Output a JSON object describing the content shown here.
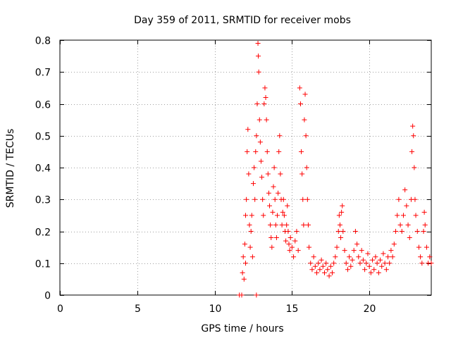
{
  "chart_data": {
    "type": "scatter",
    "title": "Day 359 of 2011, SRMTID for receiver mobs",
    "xlabel": "GPS time / hours",
    "ylabel": "SRMTID / TECUs",
    "xlim": [
      0,
      24
    ],
    "ylim": [
      0,
      0.8
    ],
    "xticks": [
      0,
      5,
      10,
      15,
      20
    ],
    "xtick_labels": [
      "0",
      "5",
      "10",
      "15",
      "20"
    ],
    "yticks": [
      0,
      0.1,
      0.2,
      0.3,
      0.4,
      0.5,
      0.6,
      0.7,
      0.8
    ],
    "ytick_labels": [
      "0",
      "0.1",
      "0.2",
      "0.3",
      "0.4",
      "0.5",
      "0.6",
      "0.7",
      "0.8"
    ],
    "grid": true,
    "marker": "+",
    "color": "#ff0000",
    "series": [
      {
        "name": "SRMTID",
        "points": [
          [
            11.6,
            0.0
          ],
          [
            11.75,
            0.0
          ],
          [
            11.8,
            0.07
          ],
          [
            11.85,
            0.12
          ],
          [
            11.9,
            0.05
          ],
          [
            11.95,
            0.16
          ],
          [
            12.0,
            0.25
          ],
          [
            12.0,
            0.1
          ],
          [
            12.05,
            0.3
          ],
          [
            12.1,
            0.45
          ],
          [
            12.15,
            0.52
          ],
          [
            12.2,
            0.38
          ],
          [
            12.25,
            0.22
          ],
          [
            12.3,
            0.15
          ],
          [
            12.35,
            0.2
          ],
          [
            12.4,
            0.25
          ],
          [
            12.45,
            0.12
          ],
          [
            12.5,
            0.35
          ],
          [
            12.55,
            0.4
          ],
          [
            12.6,
            0.3
          ],
          [
            12.65,
            0.45
          ],
          [
            12.7,
            0.5
          ],
          [
            12.7,
            0.0
          ],
          [
            12.75,
            0.6
          ],
          [
            12.8,
            0.79
          ],
          [
            12.82,
            0.75
          ],
          [
            12.85,
            0.7
          ],
          [
            12.9,
            0.55
          ],
          [
            12.95,
            0.48
          ],
          [
            13.0,
            0.42
          ],
          [
            13.05,
            0.37
          ],
          [
            13.1,
            0.3
          ],
          [
            13.15,
            0.25
          ],
          [
            13.2,
            0.6
          ],
          [
            13.25,
            0.65
          ],
          [
            13.3,
            0.62
          ],
          [
            13.35,
            0.55
          ],
          [
            13.4,
            0.45
          ],
          [
            13.45,
            0.38
          ],
          [
            13.5,
            0.32
          ],
          [
            13.55,
            0.28
          ],
          [
            13.6,
            0.22
          ],
          [
            13.65,
            0.18
          ],
          [
            13.7,
            0.15
          ],
          [
            13.75,
            0.26
          ],
          [
            13.8,
            0.34
          ],
          [
            13.85,
            0.4
          ],
          [
            13.9,
            0.3
          ],
          [
            13.95,
            0.22
          ],
          [
            14.0,
            0.18
          ],
          [
            14.05,
            0.25
          ],
          [
            14.1,
            0.32
          ],
          [
            14.15,
            0.45
          ],
          [
            14.2,
            0.5
          ],
          [
            14.25,
            0.38
          ],
          [
            14.3,
            0.3
          ],
          [
            14.35,
            0.22
          ],
          [
            14.4,
            0.26
          ],
          [
            14.45,
            0.3
          ],
          [
            14.5,
            0.25
          ],
          [
            14.55,
            0.2
          ],
          [
            14.6,
            0.17
          ],
          [
            14.65,
            0.22
          ],
          [
            14.7,
            0.28
          ],
          [
            14.75,
            0.2
          ],
          [
            14.8,
            0.16
          ],
          [
            14.85,
            0.14
          ],
          [
            14.9,
            0.18
          ],
          [
            15.0,
            0.15
          ],
          [
            15.1,
            0.12
          ],
          [
            15.2,
            0.17
          ],
          [
            15.3,
            0.2
          ],
          [
            15.4,
            0.14
          ],
          [
            15.5,
            0.65
          ],
          [
            15.55,
            0.6
          ],
          [
            15.6,
            0.45
          ],
          [
            15.65,
            0.38
          ],
          [
            15.7,
            0.3
          ],
          [
            15.75,
            0.22
          ],
          [
            15.8,
            0.55
          ],
          [
            15.85,
            0.63
          ],
          [
            15.9,
            0.5
          ],
          [
            15.95,
            0.4
          ],
          [
            16.0,
            0.3
          ],
          [
            16.05,
            0.22
          ],
          [
            16.1,
            0.15
          ],
          [
            16.2,
            0.1
          ],
          [
            16.3,
            0.08
          ],
          [
            16.4,
            0.12
          ],
          [
            16.5,
            0.09
          ],
          [
            16.6,
            0.07
          ],
          [
            16.7,
            0.1
          ],
          [
            16.8,
            0.08
          ],
          [
            16.9,
            0.11
          ],
          [
            17.0,
            0.09
          ],
          [
            17.1,
            0.07
          ],
          [
            17.2,
            0.1
          ],
          [
            17.3,
            0.08
          ],
          [
            17.4,
            0.06
          ],
          [
            17.5,
            0.09
          ],
          [
            17.6,
            0.07
          ],
          [
            17.7,
            0.1
          ],
          [
            17.8,
            0.12
          ],
          [
            17.9,
            0.15
          ],
          [
            18.0,
            0.2
          ],
          [
            18.05,
            0.25
          ],
          [
            18.1,
            0.22
          ],
          [
            18.15,
            0.18
          ],
          [
            18.2,
            0.26
          ],
          [
            18.25,
            0.28
          ],
          [
            18.3,
            0.2
          ],
          [
            18.4,
            0.14
          ],
          [
            18.5,
            0.1
          ],
          [
            18.6,
            0.08
          ],
          [
            18.7,
            0.12
          ],
          [
            18.8,
            0.09
          ],
          [
            18.9,
            0.11
          ],
          [
            19.0,
            0.14
          ],
          [
            19.1,
            0.2
          ],
          [
            19.2,
            0.16
          ],
          [
            19.3,
            0.12
          ],
          [
            19.4,
            0.1
          ],
          [
            19.5,
            0.14
          ],
          [
            19.6,
            0.11
          ],
          [
            19.7,
            0.08
          ],
          [
            19.8,
            0.1
          ],
          [
            19.9,
            0.13
          ],
          [
            20.0,
            0.09
          ],
          [
            20.1,
            0.07
          ],
          [
            20.2,
            0.11
          ],
          [
            20.3,
            0.08
          ],
          [
            20.4,
            0.12
          ],
          [
            20.5,
            0.1
          ],
          [
            20.6,
            0.07
          ],
          [
            20.7,
            0.11
          ],
          [
            20.8,
            0.09
          ],
          [
            20.9,
            0.13
          ],
          [
            21.0,
            0.1
          ],
          [
            21.1,
            0.08
          ],
          [
            21.2,
            0.12
          ],
          [
            21.3,
            0.1
          ],
          [
            21.4,
            0.14
          ],
          [
            21.5,
            0.12
          ],
          [
            21.6,
            0.16
          ],
          [
            21.7,
            0.2
          ],
          [
            21.8,
            0.25
          ],
          [
            21.9,
            0.3
          ],
          [
            22.0,
            0.22
          ],
          [
            22.1,
            0.2
          ],
          [
            22.2,
            0.25
          ],
          [
            22.3,
            0.33
          ],
          [
            22.4,
            0.28
          ],
          [
            22.5,
            0.22
          ],
          [
            22.6,
            0.18
          ],
          [
            22.7,
            0.3
          ],
          [
            22.75,
            0.45
          ],
          [
            22.8,
            0.53
          ],
          [
            22.85,
            0.5
          ],
          [
            22.9,
            0.4
          ],
          [
            22.95,
            0.3
          ],
          [
            23.0,
            0.25
          ],
          [
            23.1,
            0.2
          ],
          [
            23.2,
            0.15
          ],
          [
            23.3,
            0.12
          ],
          [
            23.4,
            0.1
          ],
          [
            23.5,
            0.2
          ],
          [
            23.55,
            0.26
          ],
          [
            23.6,
            0.22
          ],
          [
            23.7,
            0.15
          ],
          [
            23.8,
            0.1
          ],
          [
            23.9,
            0.12
          ],
          [
            24.0,
            0.1
          ]
        ]
      }
    ]
  }
}
